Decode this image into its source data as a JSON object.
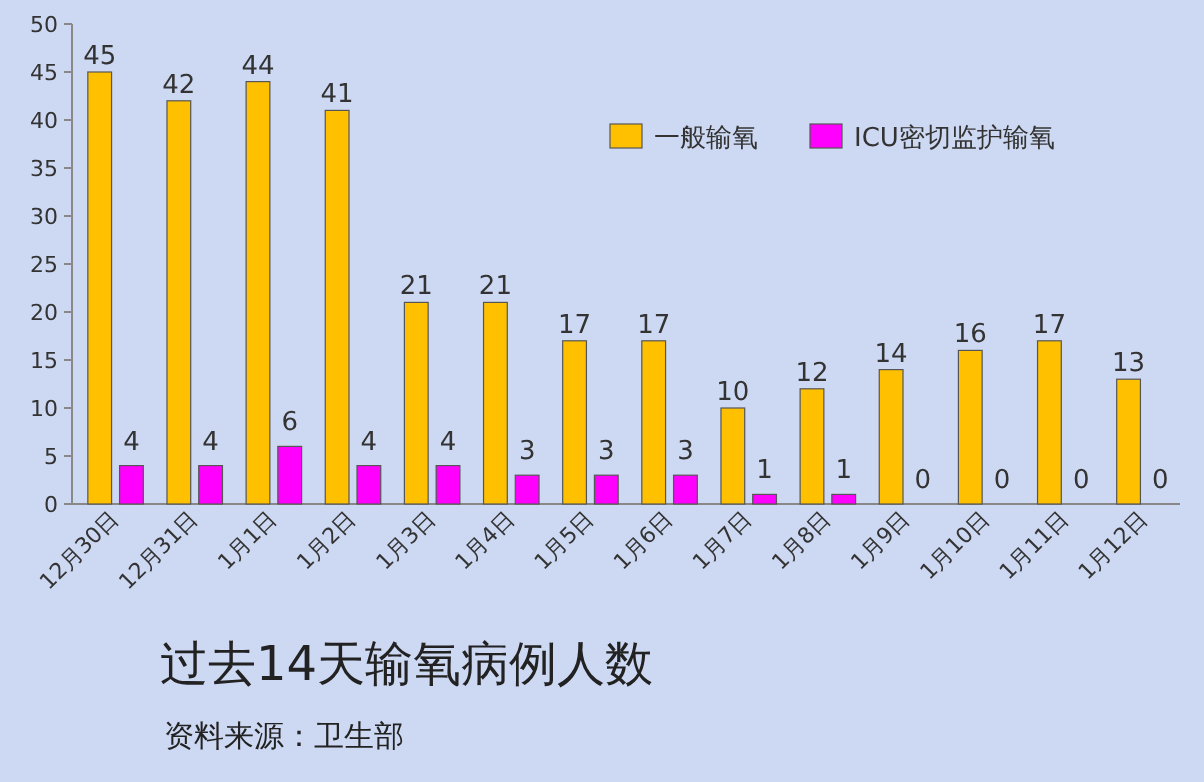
{
  "chart_data": {
    "type": "bar",
    "title": "过去14天输氧病例人数",
    "annotations": [
      "资料来源：卫生部"
    ],
    "categories": [
      "12月30日",
      "12月31日",
      "1月1日",
      "1月2日",
      "1月3日",
      "1月4日",
      "1月5日",
      "1月6日",
      "1月7日",
      "1月8日",
      "1月9日",
      "1月10日",
      "1月11日",
      "1月12日"
    ],
    "series": [
      {
        "name": "一般输氧",
        "color": "#ffc000",
        "values": [
          45,
          42,
          44,
          41,
          21,
          21,
          17,
          17,
          10,
          12,
          14,
          16,
          17,
          13
        ]
      },
      {
        "name": "ICU密切监护输氧",
        "color": "#ff00ff",
        "values": [
          4,
          4,
          6,
          4,
          4,
          3,
          3,
          3,
          1,
          1,
          0,
          0,
          0,
          0
        ]
      }
    ],
    "ylim": [
      0,
      50
    ],
    "yticks": [
      0,
      5,
      10,
      15,
      20,
      25,
      30,
      35,
      40,
      45,
      50
    ],
    "data_labels": true,
    "legend": "top right",
    "grid": false
  }
}
